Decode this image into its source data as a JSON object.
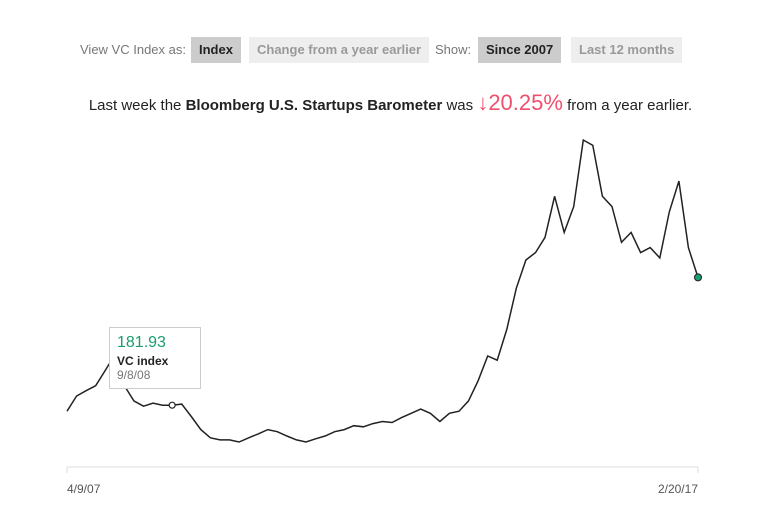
{
  "controls": {
    "view_label": "View VC Index as:",
    "view_options": [
      "Index",
      "Change from a year earlier"
    ],
    "view_active": 0,
    "show_label": "Show:",
    "show_options": [
      "Since 2007",
      "Last 12 months"
    ],
    "show_active": 0
  },
  "headline": {
    "before": "Last week the",
    "name": "Bloomberg U.S. Startups Barometer",
    "middle": "was",
    "change": {
      "value": -20.25,
      "label": "↓20.25%"
    },
    "after": "from a year earlier."
  },
  "chart_data": {
    "type": "line",
    "series": [
      {
        "name": "VC index",
        "color": "#222222",
        "values": [
          165,
          208,
          223,
          237,
          280,
          324,
          237,
          194,
          179,
          188,
          182,
          181.93,
          185,
          150,
          113,
          90,
          84,
          84,
          78,
          90,
          101,
          113,
          107,
          95,
          84,
          78,
          87,
          95,
          107,
          113,
          124,
          121,
          130,
          136,
          133,
          147,
          159,
          171,
          159,
          136,
          159,
          165,
          194,
          251,
          321,
          309,
          396,
          512,
          592,
          613,
          656,
          772,
          670,
          743,
          931,
          916,
          772,
          743,
          642,
          670,
          613,
          627,
          598,
          728,
          815,
          627,
          543
        ]
      }
    ],
    "xticks": [
      "4/9/07",
      "2/20/17"
    ],
    "tooltip": {
      "index": 11,
      "value": 181.93,
      "label": "VC index",
      "date": "9/8/08"
    },
    "end_color": "#1a9e6e"
  }
}
